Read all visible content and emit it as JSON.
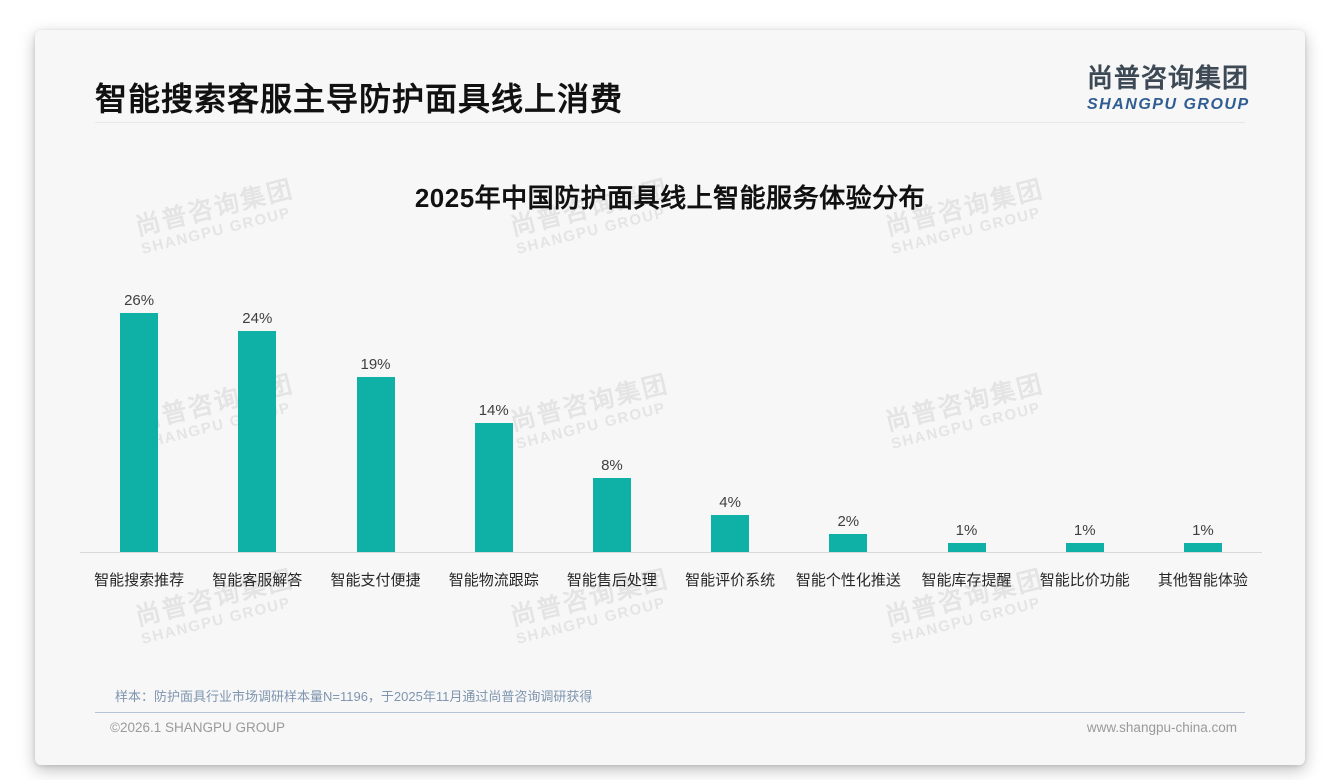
{
  "page": {
    "title": "智能搜索客服主导防护面具线上消费"
  },
  "logo": {
    "name_cn": "尚普咨询集团",
    "name_en": "SHANGPU GROUP"
  },
  "watermark": {
    "cn": "尚普咨询集团",
    "en": "SHANGPU GROUP"
  },
  "chart_data": {
    "type": "bar",
    "title": "2025年中国防护面具线上智能服务体验分布",
    "categories": [
      "智能搜索推荐",
      "智能客服解答",
      "智能支付便捷",
      "智能物流跟踪",
      "智能售后处理",
      "智能评价系统",
      "智能个性化推送",
      "智能库存提醒",
      "智能比价功能",
      "其他智能体验"
    ],
    "values": [
      26,
      24,
      19,
      14,
      8,
      4,
      2,
      1,
      1,
      1
    ],
    "labels": [
      "26%",
      "24%",
      "19%",
      "14%",
      "8%",
      "4%",
      "2%",
      "1%",
      "1%",
      "1%"
    ],
    "unit": "%",
    "xlabel": "",
    "ylabel": "",
    "ylim": [
      0,
      28
    ],
    "grid": false,
    "legend": false,
    "bar_color": "#0fb0a6"
  },
  "footnote": {
    "sample_note": "样本：防护面具行业市场调研样本量N=1196，于2025年11月通过尚普咨询调研获得"
  },
  "footer": {
    "copyright": "©2026.1 SHANGPU GROUP",
    "website": "www.shangpu-china.com"
  }
}
